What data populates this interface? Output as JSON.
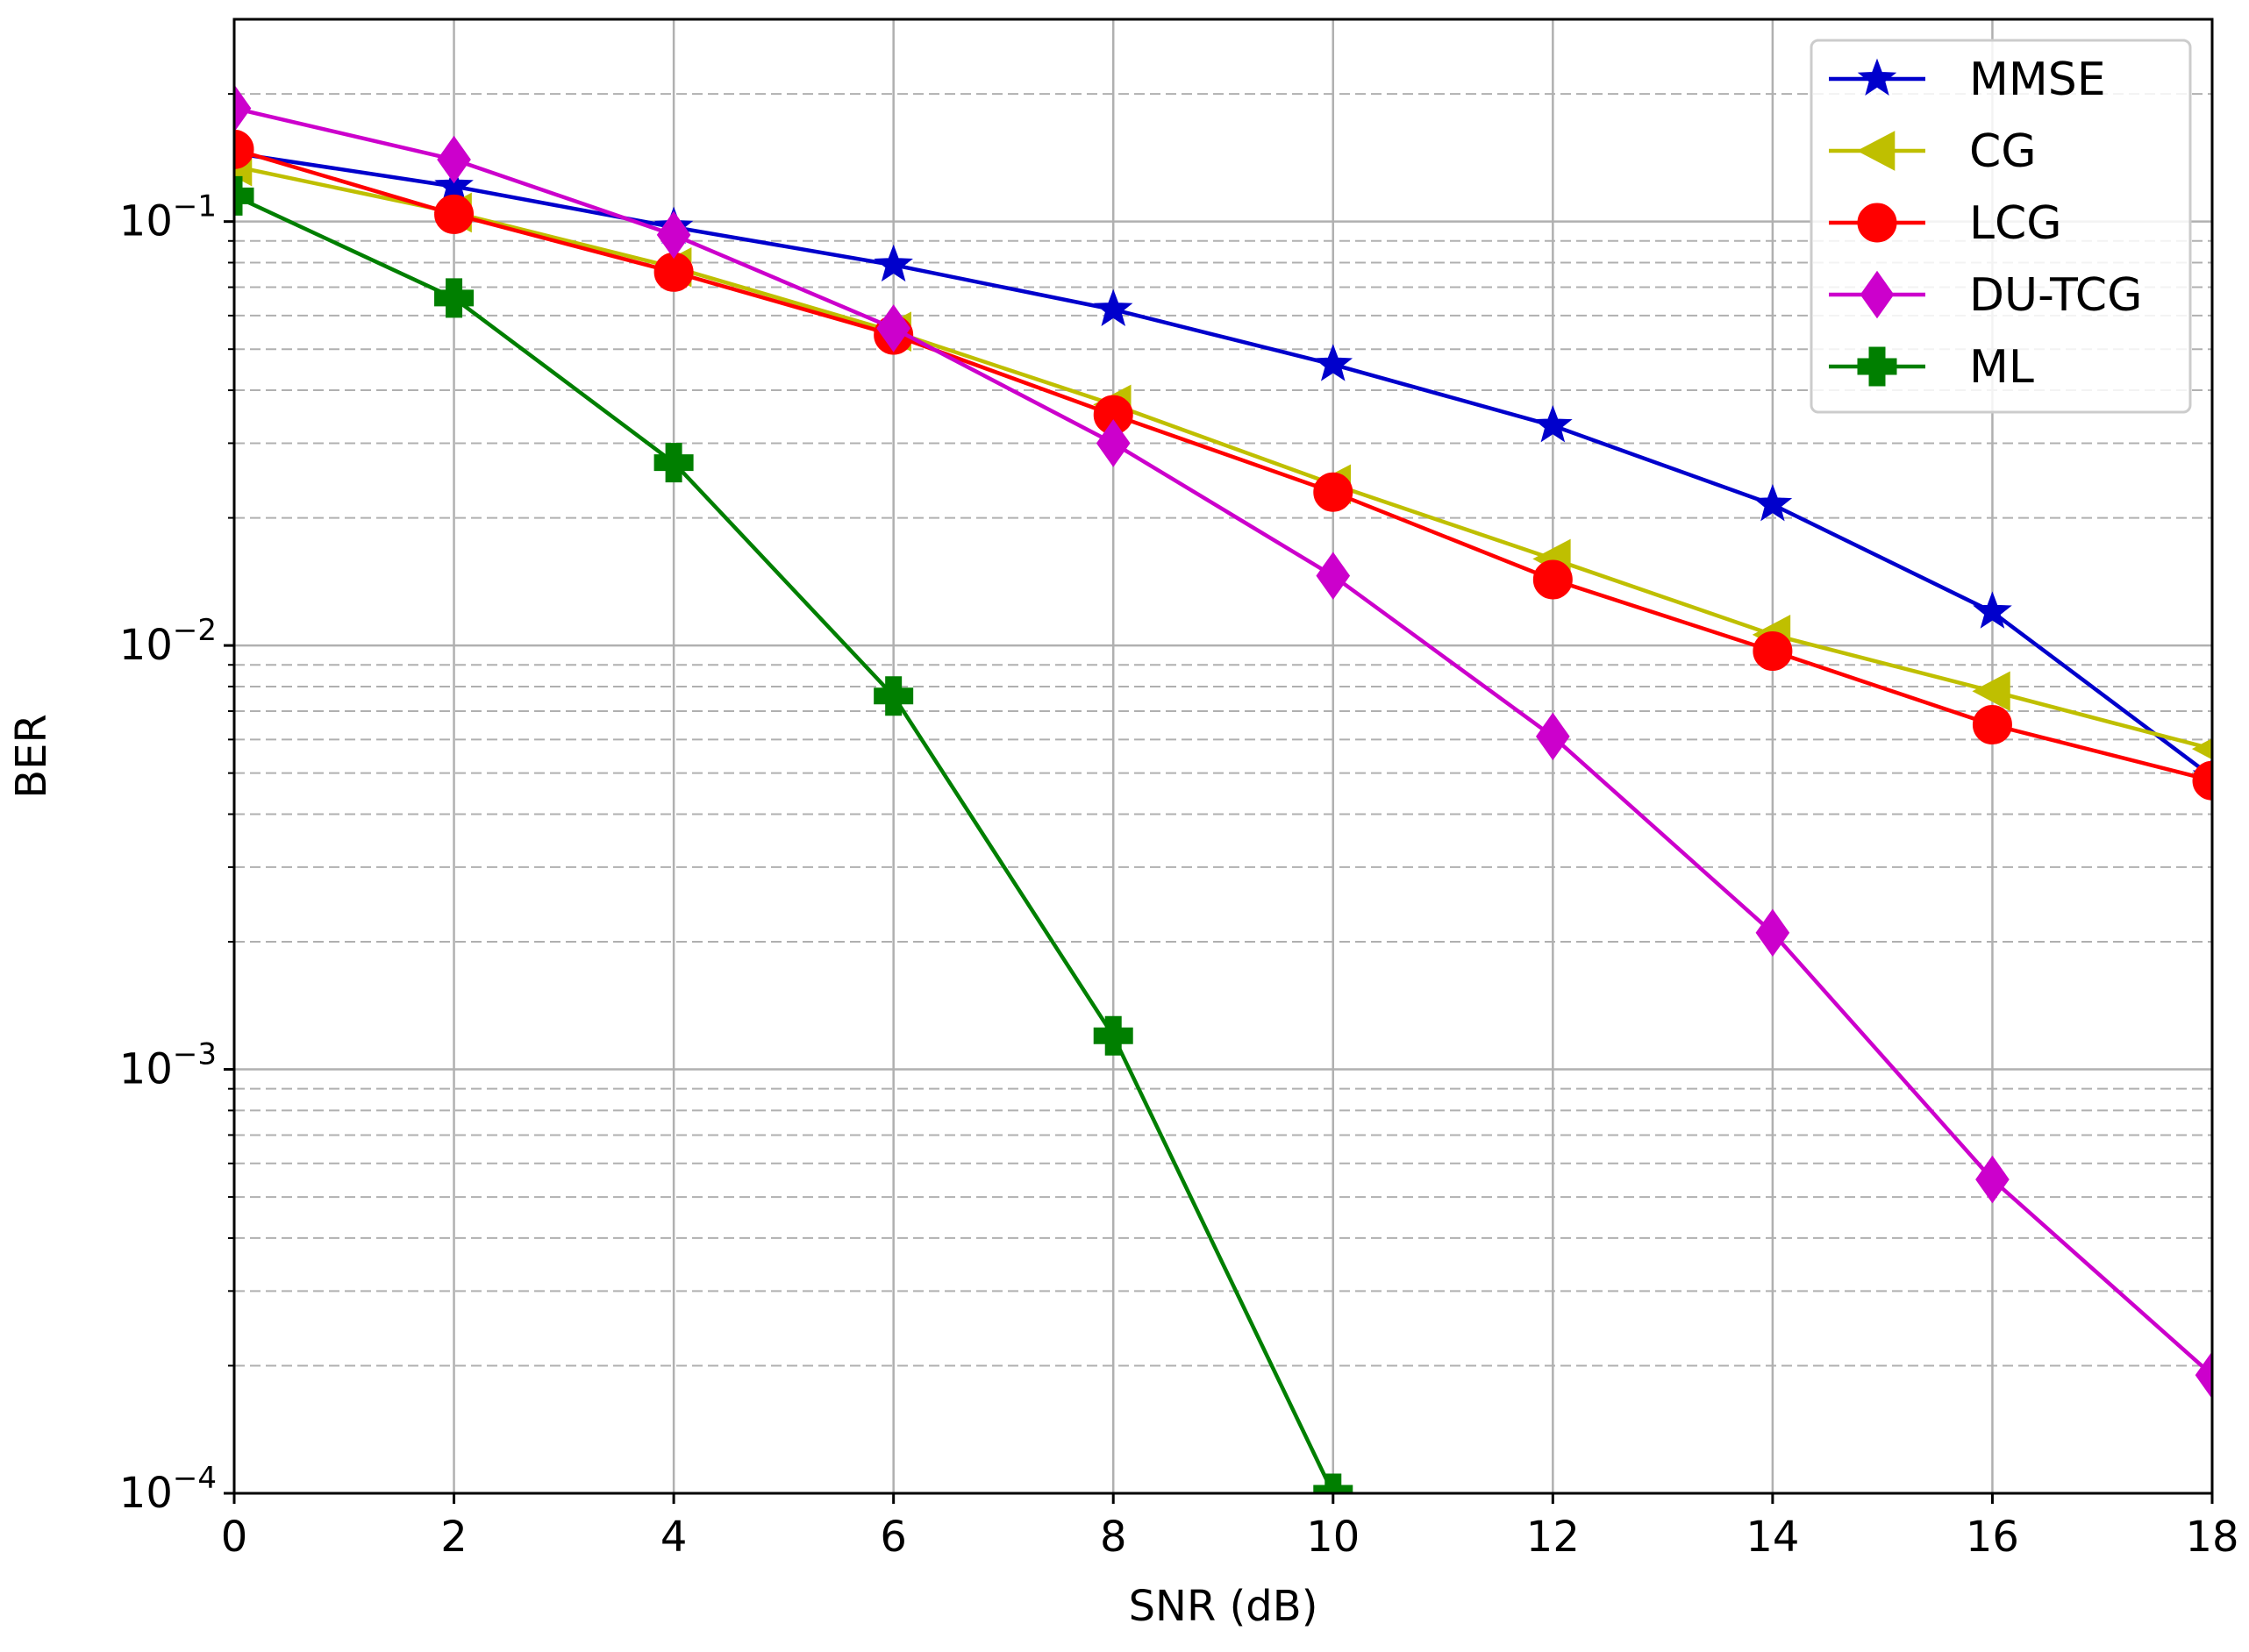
{
  "chart_data": {
    "type": "line",
    "xlabel": "SNR (dB)",
    "ylabel": "BER",
    "x_scale": "linear",
    "y_scale": "log",
    "xlim": [
      0,
      18
    ],
    "ylim": [
      0.0001,
      0.3
    ],
    "x_ticks": [
      0,
      2,
      4,
      6,
      8,
      10,
      12,
      14,
      16,
      18
    ],
    "x_tick_labels": [
      "0",
      "2",
      "4",
      "6",
      "8",
      "10",
      "12",
      "14",
      "16",
      "18"
    ],
    "y_ticks": [
      0.1,
      0.01,
      0.001,
      0.0001
    ],
    "y_tick_labels": [
      {
        "base": "10",
        "exp": "−1"
      },
      {
        "base": "10",
        "exp": "−2"
      },
      {
        "base": "10",
        "exp": "−3"
      },
      {
        "base": "10",
        "exp": "−4"
      }
    ],
    "grid": "major solid, minor dashed (y)",
    "legend_position": "top-right",
    "series": [
      {
        "name": "MMSE",
        "color": "#0000cc",
        "marker": "star",
        "x": [
          0,
          2,
          4,
          6,
          8,
          10,
          12,
          14,
          16,
          18
        ],
        "y": [
          0.145,
          0.121,
          0.097,
          0.079,
          0.062,
          0.046,
          0.033,
          0.0215,
          0.012,
          0.0049
        ]
      },
      {
        "name": "CG",
        "color": "#bfbf00",
        "marker": "triangle-left",
        "x": [
          0,
          2,
          4,
          6,
          8,
          10,
          12,
          14,
          16,
          18
        ],
        "y": [
          0.135,
          0.105,
          0.078,
          0.055,
          0.037,
          0.024,
          0.016,
          0.0106,
          0.0078,
          0.0057
        ]
      },
      {
        "name": "LCG",
        "color": "#ff0000",
        "marker": "circle",
        "x": [
          0,
          2,
          4,
          6,
          8,
          10,
          12,
          14,
          16,
          18
        ],
        "y": [
          0.148,
          0.104,
          0.076,
          0.054,
          0.035,
          0.023,
          0.0143,
          0.0097,
          0.0065,
          0.0048
        ]
      },
      {
        "name": "DU-TCG",
        "color": "#cc00cc",
        "marker": "diamond",
        "x": [
          0,
          2,
          4,
          6,
          8,
          10,
          12,
          14,
          16,
          18
        ],
        "y": [
          0.185,
          0.14,
          0.093,
          0.056,
          0.03,
          0.0146,
          0.0061,
          0.0021,
          0.00055,
          0.00019
        ]
      },
      {
        "name": "ML",
        "color": "#007f00",
        "marker": "plus",
        "x": [
          0,
          2,
          4,
          6,
          8,
          10
        ],
        "y": [
          0.115,
          0.066,
          0.027,
          0.0076,
          0.0012,
          0.0001
        ]
      }
    ]
  }
}
